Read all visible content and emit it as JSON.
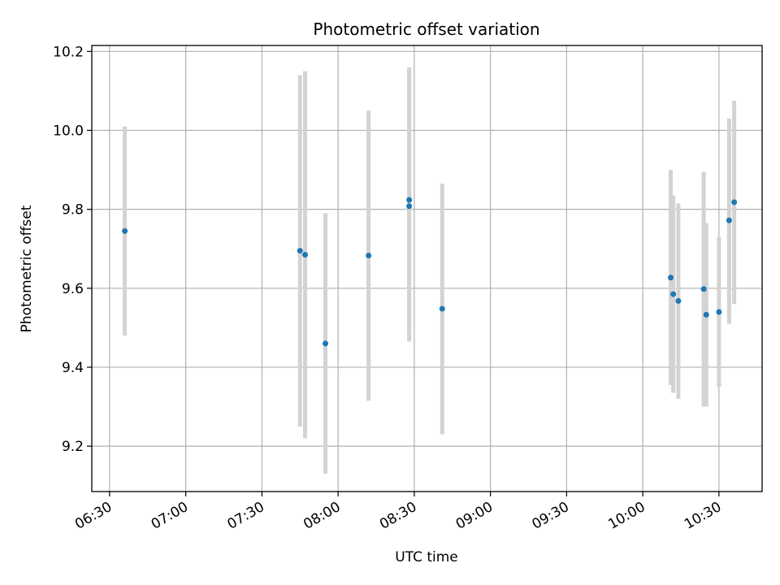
{
  "chart_data": {
    "type": "scatter",
    "title": "Photometric offset variation",
    "xlabel": "UTC time",
    "ylabel": "Photometric offset",
    "xlim": [
      "06:23",
      "10:47"
    ],
    "ylim": [
      9.085,
      10.215
    ],
    "x_ticks": [
      "06:30",
      "07:00",
      "07:30",
      "08:00",
      "08:30",
      "09:00",
      "09:30",
      "10:00",
      "10:30"
    ],
    "y_ticks": [
      "9.2",
      "9.4",
      "9.6",
      "9.8",
      "10.0",
      "10.2"
    ],
    "grid": true,
    "point_color": "#1f77b4",
    "errorbar_color": "#d3d3d3",
    "points": [
      {
        "time": "06:36",
        "y": 9.745,
        "low": 9.48,
        "high": 10.01
      },
      {
        "time": "07:45",
        "y": 9.695,
        "low": 9.25,
        "high": 10.14
      },
      {
        "time": "07:47",
        "y": 9.685,
        "low": 9.22,
        "high": 10.15
      },
      {
        "time": "07:55",
        "y": 9.46,
        "low": 9.13,
        "high": 9.79
      },
      {
        "time": "08:12",
        "y": 9.683,
        "low": 9.315,
        "high": 10.05
      },
      {
        "time": "08:28",
        "y": 9.808,
        "low": 9.465,
        "high": 10.155
      },
      {
        "time": "08:28",
        "y": 9.824,
        "low": 9.49,
        "high": 10.16
      },
      {
        "time": "08:41",
        "y": 9.548,
        "low": 9.23,
        "high": 9.865
      },
      {
        "time": "10:11",
        "y": 9.627,
        "low": 9.355,
        "high": 9.9
      },
      {
        "time": "10:12",
        "y": 9.585,
        "low": 9.335,
        "high": 9.835
      },
      {
        "time": "10:14",
        "y": 9.568,
        "low": 9.32,
        "high": 9.815
      },
      {
        "time": "10:24",
        "y": 9.598,
        "low": 9.3,
        "high": 9.895
      },
      {
        "time": "10:25",
        "y": 9.533,
        "low": 9.3,
        "high": 9.765
      },
      {
        "time": "10:30",
        "y": 9.54,
        "low": 9.35,
        "high": 9.73
      },
      {
        "time": "10:34",
        "y": 9.772,
        "low": 9.51,
        "high": 10.03
      },
      {
        "time": "10:36",
        "y": 9.818,
        "low": 9.56,
        "high": 10.075
      }
    ]
  }
}
